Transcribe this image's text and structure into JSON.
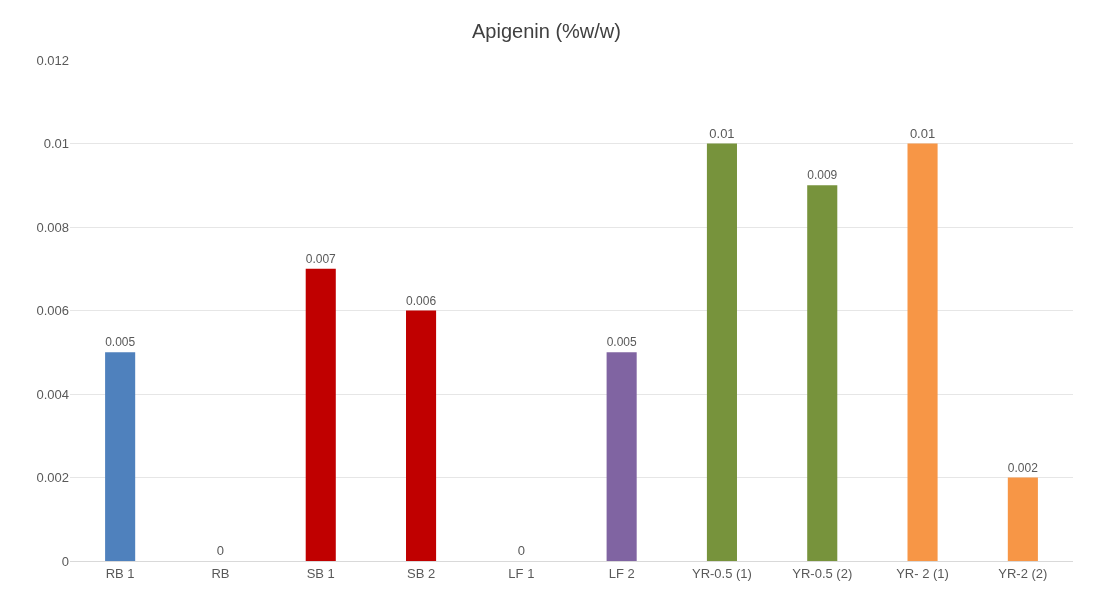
{
  "chart_data": {
    "type": "bar",
    "title": "Apigenin (%w/w)",
    "categories": [
      "RB 1",
      "RB",
      "SB 1",
      "SB 2",
      "LF 1",
      "LF 2",
      "YR-0.5 (1)",
      "YR-0.5 (2)",
      "YR- 2 (1)",
      "YR-2 (2)"
    ],
    "values": [
      0.005,
      0,
      0.007,
      0.006,
      0,
      0.005,
      0.01,
      0.009,
      0.01,
      0.002
    ],
    "colors": [
      "#4f81bd",
      "#4f81bd",
      "#c00000",
      "#c00000",
      "#8064a2",
      "#8064a2",
      "#77933c",
      "#77933c",
      "#f79646",
      "#f79646"
    ],
    "ylim": [
      0,
      0.012
    ],
    "yticks": [
      0,
      0.002,
      0.004,
      0.006,
      0.008,
      0.01,
      0.012
    ],
    "grid": "y",
    "data_labels": true,
    "legend": false
  }
}
